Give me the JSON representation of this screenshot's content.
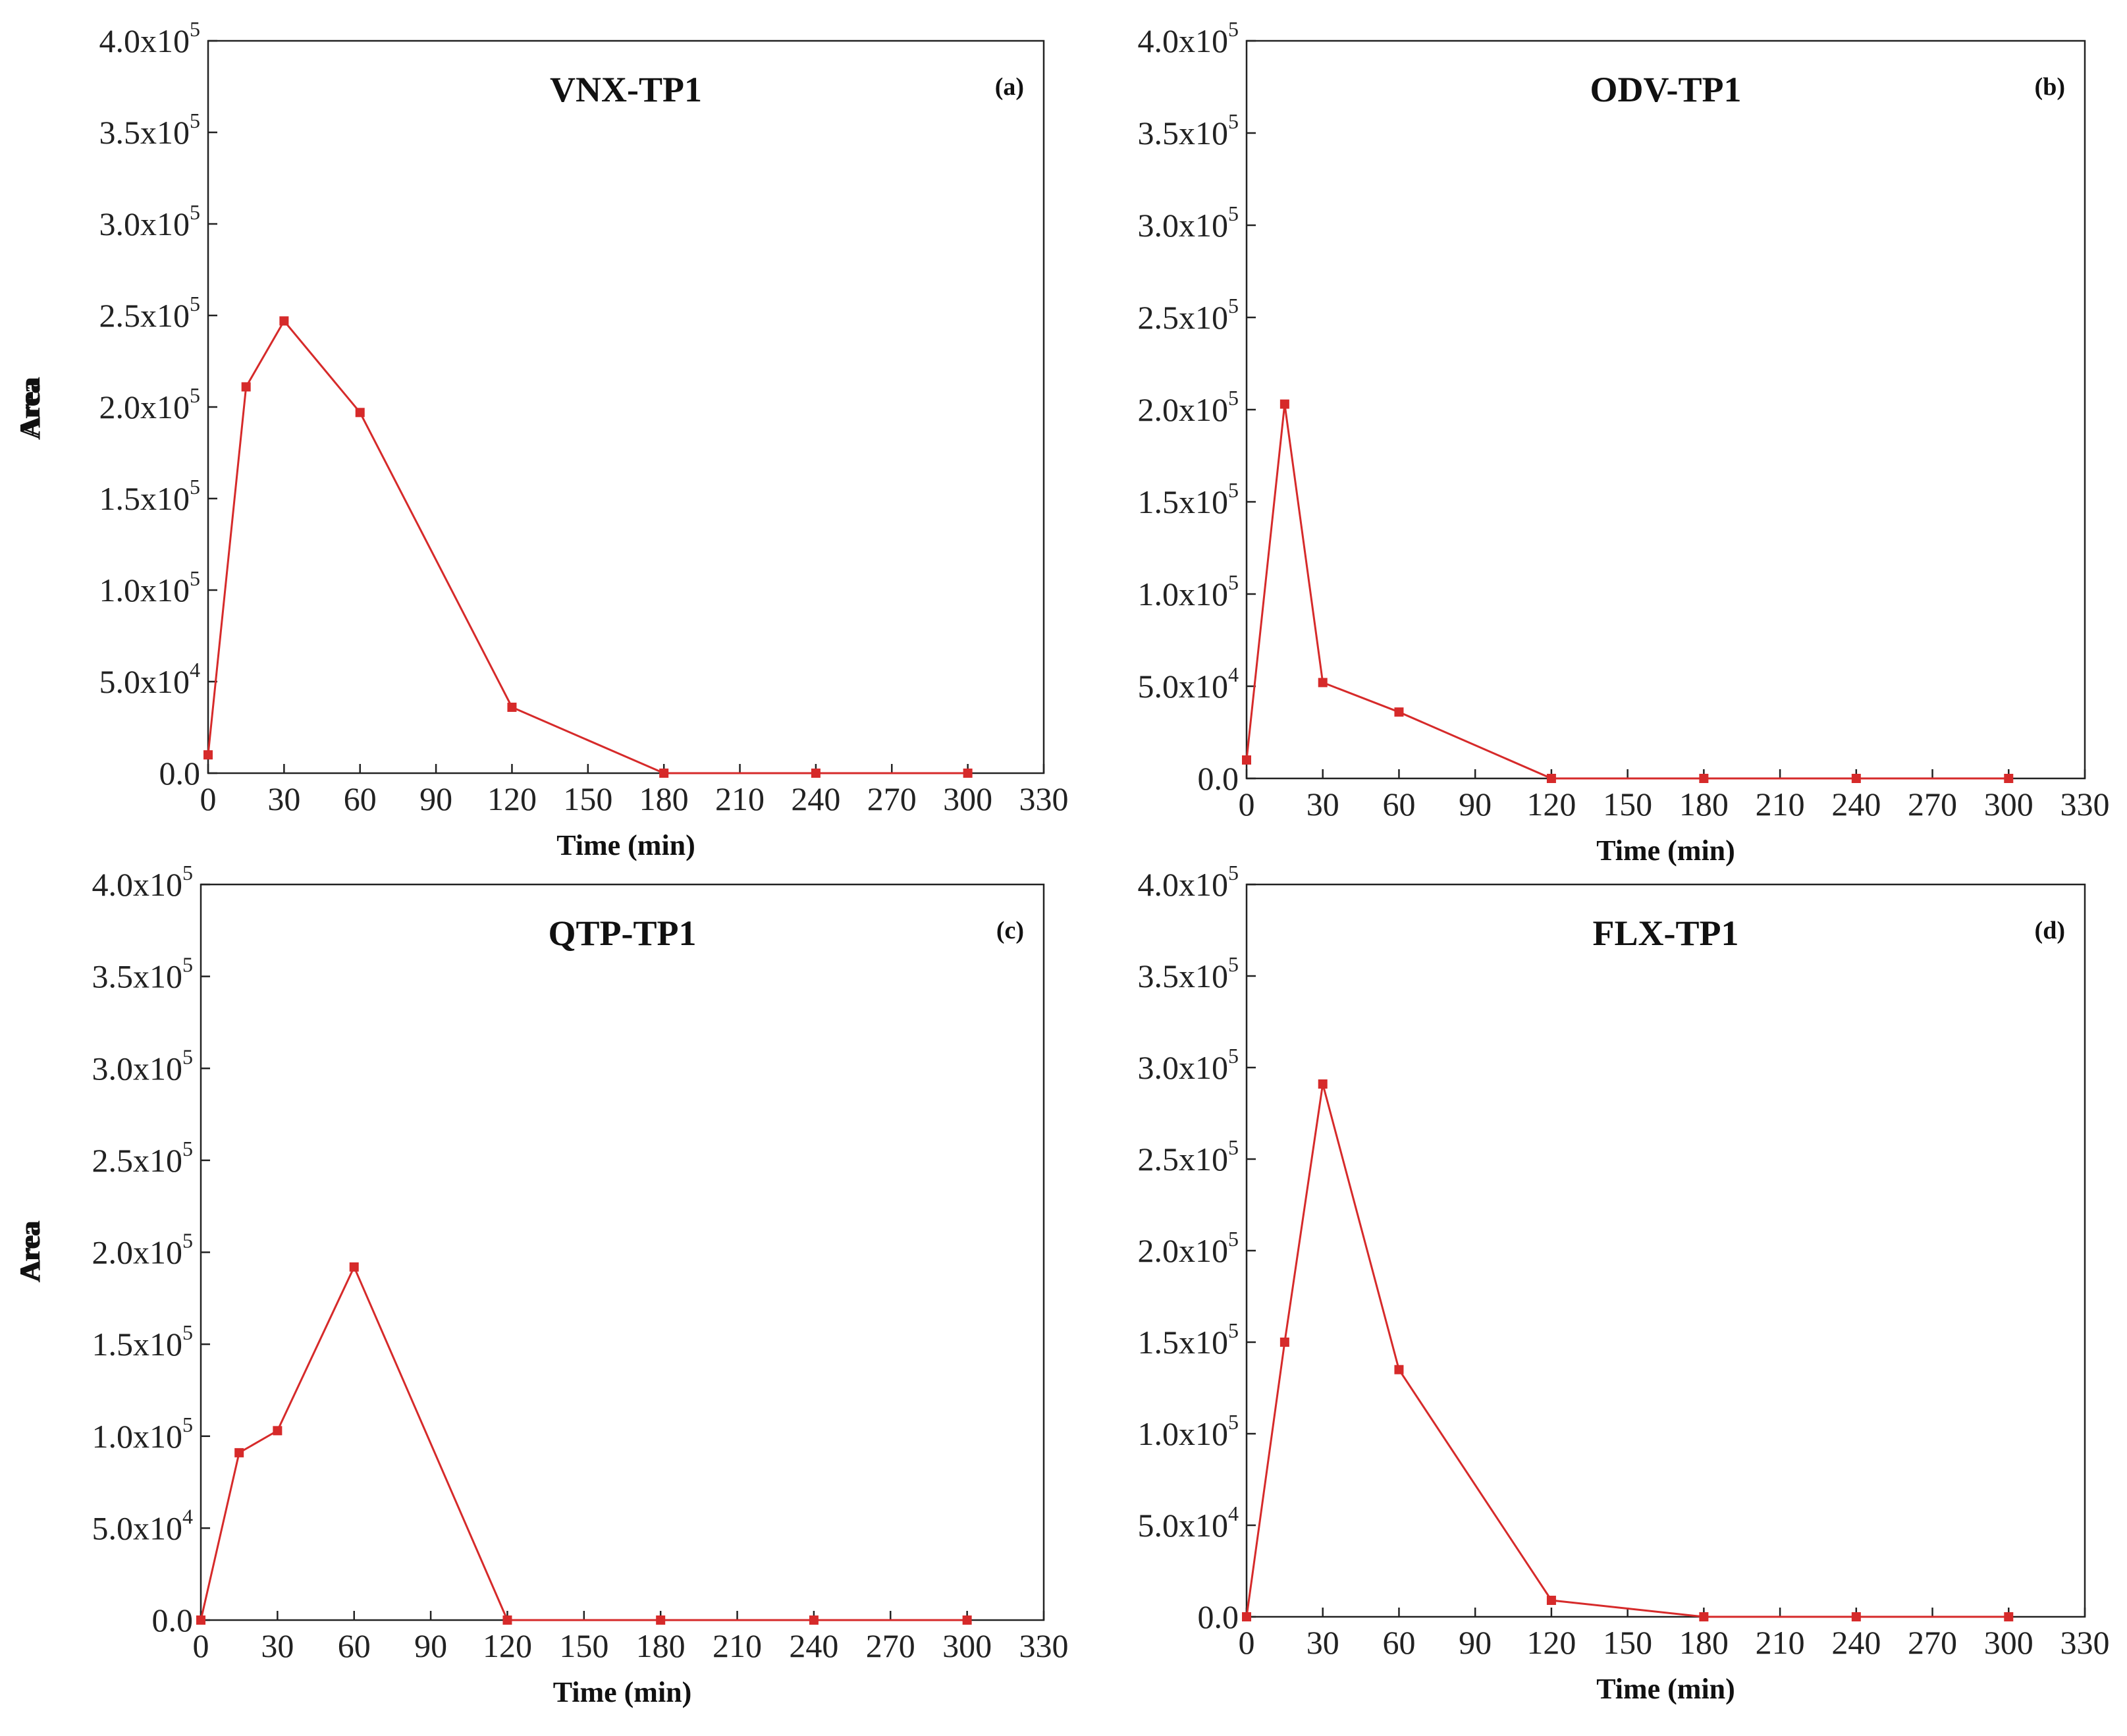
{
  "chart_data": [
    {
      "type": "line",
      "title": "VNX-TP1",
      "panel_label": "(a)",
      "xlabel": "Time (min)",
      "ylabel": "Area",
      "x": [
        0,
        15,
        30,
        60,
        120,
        180,
        240,
        300
      ],
      "values": [
        10000,
        211000,
        247000,
        197000,
        36000,
        0,
        0,
        0
      ],
      "xlim": [
        0,
        330
      ],
      "ylim": [
        0,
        400000
      ],
      "xticks": [
        "0",
        "30",
        "60",
        "90",
        "120",
        "150",
        "180",
        "210",
        "240",
        "270",
        "300",
        "330"
      ],
      "yticks": [
        {
          "mantissa": "0.0",
          "exp": ""
        },
        {
          "mantissa": "5.0x10",
          "exp": "4"
        },
        {
          "mantissa": "1.0x10",
          "exp": "5"
        },
        {
          "mantissa": "1.5x10",
          "exp": "5"
        },
        {
          "mantissa": "2.0x10",
          "exp": "5"
        },
        {
          "mantissa": "2.5x10",
          "exp": "5"
        },
        {
          "mantissa": "3.0x10",
          "exp": "5"
        },
        {
          "mantissa": "3.5x10",
          "exp": "5"
        },
        {
          "mantissa": "4.0x10",
          "exp": "5"
        }
      ],
      "color": "#d62a2a",
      "grid": false
    },
    {
      "type": "line",
      "title": "ODV-TP1",
      "panel_label": "(b)",
      "xlabel": "Time (min)",
      "ylabel": "Area",
      "x": [
        0,
        15,
        30,
        60,
        120,
        180,
        240,
        300
      ],
      "values": [
        10000,
        203000,
        52000,
        36000,
        0,
        0,
        0,
        0
      ],
      "xlim": [
        0,
        330
      ],
      "ylim": [
        0,
        400000
      ],
      "xticks": [
        "0",
        "30",
        "60",
        "90",
        "120",
        "150",
        "180",
        "210",
        "240",
        "270",
        "300",
        "330"
      ],
      "yticks": [
        {
          "mantissa": "0.0",
          "exp": ""
        },
        {
          "mantissa": "5.0x10",
          "exp": "4"
        },
        {
          "mantissa": "1.0x10",
          "exp": "5"
        },
        {
          "mantissa": "1.5x10",
          "exp": "5"
        },
        {
          "mantissa": "2.0x10",
          "exp": "5"
        },
        {
          "mantissa": "2.5x10",
          "exp": "5"
        },
        {
          "mantissa": "3.0x10",
          "exp": "5"
        },
        {
          "mantissa": "3.5x10",
          "exp": "5"
        },
        {
          "mantissa": "4.0x10",
          "exp": "5"
        }
      ],
      "color": "#d62a2a",
      "grid": false
    },
    {
      "type": "line",
      "title": "QTP-TP1",
      "panel_label": "(c)",
      "xlabel": "Time (min)",
      "ylabel": "Area",
      "x": [
        0,
        15,
        30,
        60,
        120,
        180,
        240,
        300
      ],
      "values": [
        0,
        91000,
        103000,
        192000,
        0,
        0,
        0,
        0
      ],
      "xlim": [
        0,
        330
      ],
      "ylim": [
        0,
        400000
      ],
      "xticks": [
        "0",
        "30",
        "60",
        "90",
        "120",
        "150",
        "180",
        "210",
        "240",
        "270",
        "300",
        "330"
      ],
      "yticks": [
        {
          "mantissa": "0.0",
          "exp": ""
        },
        {
          "mantissa": "5.0x10",
          "exp": "4"
        },
        {
          "mantissa": "1.0x10",
          "exp": "5"
        },
        {
          "mantissa": "1.5x10",
          "exp": "5"
        },
        {
          "mantissa": "2.0x10",
          "exp": "5"
        },
        {
          "mantissa": "2.5x10",
          "exp": "5"
        },
        {
          "mantissa": "3.0x10",
          "exp": "5"
        },
        {
          "mantissa": "3.5x10",
          "exp": "5"
        },
        {
          "mantissa": "4.0x10",
          "exp": "5"
        }
      ],
      "color": "#d62a2a",
      "grid": false
    },
    {
      "type": "line",
      "title": "FLX-TP1",
      "panel_label": "(d)",
      "xlabel": "Time (min)",
      "ylabel": "Area",
      "x": [
        0,
        15,
        30,
        60,
        120,
        180,
        240,
        300
      ],
      "values": [
        0,
        150000,
        291000,
        135000,
        9000,
        0,
        0,
        0
      ],
      "xlim": [
        0,
        330
      ],
      "ylim": [
        0,
        400000
      ],
      "xticks": [
        "0",
        "30",
        "60",
        "90",
        "120",
        "150",
        "180",
        "210",
        "240",
        "270",
        "300",
        "330"
      ],
      "yticks": [
        {
          "mantissa": "0.0",
          "exp": ""
        },
        {
          "mantissa": "5.0x10",
          "exp": "4"
        },
        {
          "mantissa": "1.0x10",
          "exp": "5"
        },
        {
          "mantissa": "1.5x10",
          "exp": "5"
        },
        {
          "mantissa": "2.0x10",
          "exp": "5"
        },
        {
          "mantissa": "2.5x10",
          "exp": "5"
        },
        {
          "mantissa": "3.0x10",
          "exp": "5"
        },
        {
          "mantissa": "3.5x10",
          "exp": "5"
        },
        {
          "mantissa": "4.0x10",
          "exp": "5"
        }
      ],
      "color": "#d62a2a",
      "grid": false
    }
  ]
}
